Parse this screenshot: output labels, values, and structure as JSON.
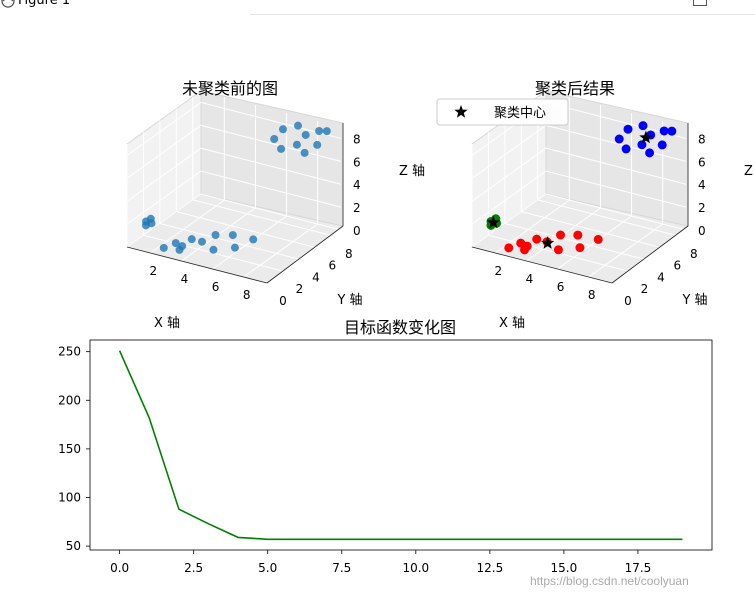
{
  "window": {
    "title": "Figure 1"
  },
  "watermark": "https://blog.csdn.net/coolyuan",
  "colors": {
    "raw": "#1f77b4",
    "c1": "#0000ff",
    "c2": "#ff0000",
    "c3": "#008000",
    "center": "#000000",
    "line": "#008000"
  },
  "chart_data": [
    {
      "type": "scatter",
      "projection": "3d",
      "title": "未聚类前的图",
      "xlabel": "X 轴",
      "ylabel": "Y 轴",
      "zlabel": "Z 轴",
      "xticks": [
        "2",
        "4",
        "6",
        "8"
      ],
      "yticks": [
        "0",
        "2",
        "4",
        "6",
        "8"
      ],
      "zticks": [
        "0",
        "2",
        "4",
        "6",
        "8"
      ],
      "xlim": [
        0.5,
        9.5
      ],
      "ylim": [
        0,
        9
      ],
      "zlim": [
        0,
        9
      ],
      "points": [
        {
          "x": 1.3,
          "y": 0.8,
          "z": 2.1
        },
        {
          "x": 1.5,
          "y": 1.0,
          "z": 2.3
        },
        {
          "x": 1.4,
          "y": 0.6,
          "z": 1.9
        },
        {
          "x": 1.6,
          "y": 0.9,
          "z": 2.0
        },
        {
          "x": 3.0,
          "y": 1.2,
          "z": 0.6
        },
        {
          "x": 3.4,
          "y": 0.9,
          "z": 0.3
        },
        {
          "x": 4.0,
          "y": 2.5,
          "z": 0.4
        },
        {
          "x": 4.5,
          "y": 3.2,
          "z": 0.8
        },
        {
          "x": 5.0,
          "y": 2.0,
          "z": 0.3
        },
        {
          "x": 5.4,
          "y": 3.6,
          "z": 0.9
        },
        {
          "x": 5.8,
          "y": 3.1,
          "z": 0.2
        },
        {
          "x": 6.5,
          "y": 4.0,
          "z": 0.7
        },
        {
          "x": 2.6,
          "y": 0.5,
          "z": 0.4
        },
        {
          "x": 3.2,
          "y": 1.6,
          "z": 0.2
        },
        {
          "x": 3.5,
          "y": 2.2,
          "z": 0.6
        },
        {
          "x": 6.0,
          "y": 7.5,
          "z": 7.5
        },
        {
          "x": 6.3,
          "y": 8.0,
          "z": 8.2
        },
        {
          "x": 6.6,
          "y": 7.2,
          "z": 7.0
        },
        {
          "x": 7.0,
          "y": 8.5,
          "z": 8.5
        },
        {
          "x": 7.3,
          "y": 7.8,
          "z": 7.3
        },
        {
          "x": 7.6,
          "y": 8.3,
          "z": 8.0
        },
        {
          "x": 7.9,
          "y": 7.6,
          "z": 6.9
        },
        {
          "x": 8.2,
          "y": 8.8,
          "z": 8.3
        },
        {
          "x": 8.5,
          "y": 8.0,
          "z": 7.6
        },
        {
          "x": 8.8,
          "y": 8.6,
          "z": 8.6
        }
      ]
    },
    {
      "type": "scatter",
      "projection": "3d",
      "title": "聚类后结果",
      "xlabel": "X 轴",
      "ylabel": "Y 轴",
      "zlabel": "Z 轴",
      "xticks": [
        "2",
        "4",
        "6",
        "8"
      ],
      "yticks": [
        "0",
        "2",
        "4",
        "6",
        "8"
      ],
      "zticks": [
        "0",
        "2",
        "4",
        "6",
        "8"
      ],
      "xlim": [
        0.5,
        9.5
      ],
      "ylim": [
        0,
        9
      ],
      "zlim": [
        0,
        9
      ],
      "legend": {
        "label": "聚类中心",
        "marker": "star",
        "location": "top-left"
      },
      "clusters": [
        {
          "color": "#008000",
          "center": {
            "x": 1.45,
            "y": 0.8,
            "z": 2.05
          },
          "points": [
            {
              "x": 1.3,
              "y": 0.8,
              "z": 2.1
            },
            {
              "x": 1.5,
              "y": 1.0,
              "z": 2.3
            },
            {
              "x": 1.4,
              "y": 0.6,
              "z": 1.9
            },
            {
              "x": 1.6,
              "y": 0.9,
              "z": 2.0
            }
          ]
        },
        {
          "color": "#ff0000",
          "center": {
            "x": 4.2,
            "y": 2.2,
            "z": 0.5
          },
          "points": [
            {
              "x": 3.0,
              "y": 1.2,
              "z": 0.6
            },
            {
              "x": 3.4,
              "y": 0.9,
              "z": 0.3
            },
            {
              "x": 4.0,
              "y": 2.5,
              "z": 0.4
            },
            {
              "x": 4.5,
              "y": 3.2,
              "z": 0.8
            },
            {
              "x": 5.0,
              "y": 2.0,
              "z": 0.3
            },
            {
              "x": 5.4,
              "y": 3.6,
              "z": 0.9
            },
            {
              "x": 5.8,
              "y": 3.1,
              "z": 0.2
            },
            {
              "x": 6.5,
              "y": 4.0,
              "z": 0.7
            },
            {
              "x": 2.6,
              "y": 0.5,
              "z": 0.4
            },
            {
              "x": 3.2,
              "y": 1.6,
              "z": 0.2
            },
            {
              "x": 3.5,
              "y": 2.2,
              "z": 0.6
            }
          ]
        },
        {
          "color": "#0000ff",
          "center": {
            "x": 7.4,
            "y": 8.1,
            "z": 7.8
          },
          "points": [
            {
              "x": 6.0,
              "y": 7.5,
              "z": 7.5
            },
            {
              "x": 6.3,
              "y": 8.0,
              "z": 8.2
            },
            {
              "x": 6.6,
              "y": 7.2,
              "z": 7.0
            },
            {
              "x": 7.0,
              "y": 8.5,
              "z": 8.5
            },
            {
              "x": 7.3,
              "y": 7.8,
              "z": 7.3
            },
            {
              "x": 7.6,
              "y": 8.3,
              "z": 8.0
            },
            {
              "x": 7.9,
              "y": 7.6,
              "z": 6.9
            },
            {
              "x": 8.2,
              "y": 8.8,
              "z": 8.3
            },
            {
              "x": 8.5,
              "y": 8.0,
              "z": 7.6
            },
            {
              "x": 8.8,
              "y": 8.6,
              "z": 8.6
            }
          ]
        }
      ]
    },
    {
      "type": "line",
      "title": "目标函数变化图",
      "x": [
        0,
        1,
        2,
        3,
        4,
        5,
        6,
        7,
        8,
        9,
        10,
        11,
        12,
        13,
        14,
        15,
        16,
        17,
        18,
        19
      ],
      "values": [
        251,
        182,
        88,
        73,
        59,
        57,
        57,
        57,
        57,
        57,
        57,
        57,
        57,
        57,
        57,
        57,
        57,
        57,
        57,
        57
      ],
      "xlim": [
        -1,
        20
      ],
      "ylim": [
        46,
        262
      ],
      "xticks": [
        "0.0",
        "2.5",
        "5.0",
        "7.5",
        "10.0",
        "12.5",
        "15.0",
        "17.5"
      ],
      "xtick_values": [
        0,
        2.5,
        5,
        7.5,
        10,
        12.5,
        15,
        17.5
      ],
      "yticks": [
        "50",
        "100",
        "150",
        "200",
        "250"
      ],
      "ytick_values": [
        50,
        100,
        150,
        200,
        250
      ]
    }
  ]
}
